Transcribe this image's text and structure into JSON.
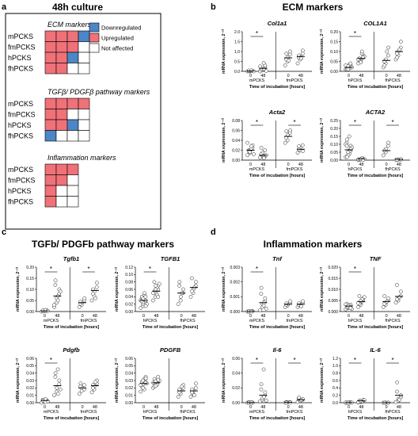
{
  "panel_a": {
    "label": "a",
    "title": "48h culture",
    "rows": [
      "mPCKS",
      "fmPCKS",
      "hPCKS",
      "fhPCKS"
    ],
    "legend": [
      {
        "label": "Downregulated",
        "color": "#4b86c8"
      },
      {
        "label": "Upregulated",
        "color": "#f07178"
      },
      {
        "label": "Not affected",
        "color": "#ffffff"
      }
    ],
    "groups": [
      {
        "title": "ECM markers",
        "cells": [
          [
            "U",
            "U",
            "U",
            "D"
          ],
          [
            "U",
            "U",
            "U",
            "N"
          ],
          [
            "U",
            "U",
            "D",
            "N"
          ],
          [
            "U",
            "U",
            "N",
            "N"
          ]
        ]
      },
      {
        "title": "TGFβ/ PDGFβ pathway markers",
        "cells": [
          [
            "U",
            "U",
            "U",
            "U"
          ],
          [
            "U",
            "U",
            "N",
            "N"
          ],
          [
            "U",
            "U",
            "D",
            "N"
          ],
          [
            "D",
            "N",
            "N",
            "N"
          ]
        ]
      },
      {
        "title": "Inflammation markers",
        "cells": [
          [
            "U",
            "U",
            "U"
          ],
          [
            "U",
            "U",
            "N"
          ],
          [
            "U",
            "N",
            "N"
          ],
          [
            "U",
            "N",
            "N"
          ]
        ]
      }
    ]
  },
  "panels": [
    {
      "label": "b",
      "title": "ECM markers"
    },
    {
      "label": "c",
      "title": "TGFb/ PDGFb pathway markers"
    },
    {
      "label": "d",
      "title": "Inflammation markers"
    }
  ],
  "common": {
    "ylabel": "mRNA expression, 2⁻ᶜᵗ",
    "xtitle": "Time of incubation [hours]",
    "xticks": [
      "0",
      "48",
      "0",
      "48"
    ]
  },
  "chart_data": [
    {
      "type": "scatter",
      "gene": "Col1a1",
      "groups": [
        "mPCKS",
        "fmPCKS"
      ],
      "yticks": [
        "0.0",
        "0.5",
        "1.0",
        "1.5",
        "2.0"
      ],
      "ylim": [
        0,
        2
      ],
      "means": [
        0.02,
        0.15,
        0.68,
        0.75
      ],
      "sig": [
        [
          0,
          1
        ]
      ],
      "points": [
        [
          0,
          0,
          0.01,
          0.02,
          0.03,
          0.01,
          0.04,
          0.02,
          0.05,
          0
        ],
        [
          0,
          0.05,
          0.1,
          0.2,
          0.3,
          0.08,
          0.15,
          0.42,
          0.12,
          0.02,
          0.25
        ],
        [
          0.3,
          0.5,
          0.7,
          0.85,
          1.0,
          0.6,
          0.9,
          0.55
        ],
        [
          0.4,
          0.6,
          0.75,
          0.9,
          1.05,
          0.7,
          0.8,
          0.65
        ]
      ]
    },
    {
      "type": "scatter",
      "gene": "COL1A1",
      "groups": [
        "hPCKS",
        "fhPCKS"
      ],
      "yticks": [
        "0.00",
        "0.05",
        "0.10",
        "0.15",
        "0.20"
      ],
      "ylim": [
        0,
        0.2
      ],
      "means": [
        0.02,
        0.065,
        0.055,
        0.1
      ],
      "sig": [
        [
          0,
          1
        ]
      ],
      "points": [
        [
          0.01,
          0.015,
          0.02,
          0.03,
          0.025,
          0.01,
          0.02,
          0.035,
          0.015,
          0.02,
          0.03,
          0.025,
          0.01,
          0.04
        ],
        [
          0.04,
          0.05,
          0.06,
          0.07,
          0.08,
          0.065,
          0.055,
          0.09,
          0.1,
          0.075,
          0.06,
          0.05,
          0.045,
          0.07
        ],
        [
          0.02,
          0.04,
          0.06,
          0.08,
          0.12,
          0.05,
          0.03,
          0.1
        ],
        [
          0.06,
          0.08,
          0.1,
          0.12,
          0.15,
          0.09,
          0.07,
          0.11
        ]
      ]
    },
    {
      "type": "scatter",
      "gene": "Acta2",
      "groups": [
        "mPCKS",
        "fmPCKS"
      ],
      "yticks": [
        "0.00",
        "0.02",
        "0.04",
        "0.06",
        "0.08"
      ],
      "ylim": [
        0,
        0.08
      ],
      "means": [
        0.02,
        0.01,
        0.048,
        0.022
      ],
      "sig": [
        [
          0,
          1
        ],
        [
          2,
          3
        ]
      ],
      "points": [
        [
          0.01,
          0.015,
          0.02,
          0.025,
          0.03,
          0.02,
          0.018,
          0.022,
          0.028,
          0.012,
          0.035,
          0.016
        ],
        [
          0.005,
          0.01,
          0.015,
          0.02,
          0.008,
          0.012,
          0.025,
          0.006,
          0.004,
          0.01
        ],
        [
          0.035,
          0.04,
          0.05,
          0.055,
          0.06,
          0.045,
          0.058
        ],
        [
          0.015,
          0.02,
          0.025,
          0.03,
          0.018,
          0.022,
          0.028
        ]
      ]
    },
    {
      "type": "scatter",
      "gene": "ACTA2",
      "groups": [
        "hPCKS",
        "fhPCKS"
      ],
      "yticks": [
        "0.00",
        "0.05",
        "0.10",
        "0.15",
        "0.20",
        "0.25"
      ],
      "ylim": [
        0,
        0.25
      ],
      "means": [
        0.065,
        0.008,
        0.06,
        0.005
      ],
      "sig": [
        [
          0,
          1
        ],
        [
          2,
          3
        ]
      ],
      "points": [
        [
          0.02,
          0.03,
          0.05,
          0.07,
          0.09,
          0.11,
          0.13,
          0.06,
          0.04,
          0.08,
          0.1,
          0.05,
          0.03,
          0.06,
          0.07,
          0.09,
          0.02,
          0.15
        ],
        [
          0.002,
          0.005,
          0.008,
          0.01,
          0.006,
          0.004,
          0.003,
          0.009,
          0.012,
          0.007,
          0.005,
          0.004,
          0.006,
          0.002
        ],
        [
          0.03,
          0.05,
          0.07,
          0.09,
          0.11,
          0.06
        ],
        [
          0.002,
          0.003,
          0.005,
          0.004,
          0.006,
          0.003
        ]
      ]
    },
    {
      "type": "scatter",
      "gene": "Tgfb1",
      "groups": [
        "mPCKS",
        "fmPCKS"
      ],
      "yticks": [
        "0.00",
        "0.05",
        "0.10",
        "0.15",
        "0.20"
      ],
      "ylim": [
        0,
        0.2
      ],
      "means": [
        0.003,
        0.07,
        0.04,
        0.095
      ],
      "sig": [
        [
          0,
          1
        ],
        [
          2,
          3
        ]
      ],
      "points": [
        [
          0,
          0.002,
          0.004,
          0.006,
          0.003,
          0.001,
          0.005,
          0.002,
          0.007,
          0.003
        ],
        [
          0.02,
          0.04,
          0.06,
          0.08,
          0.1,
          0.12,
          0.14,
          0.05,
          0.07,
          0.09,
          0.03
        ],
        [
          0.02,
          0.03,
          0.04,
          0.05,
          0.06,
          0.035,
          0.045
        ],
        [
          0.05,
          0.07,
          0.09,
          0.11,
          0.13,
          0.08,
          0.1,
          0.06
        ]
      ]
    },
    {
      "type": "scatter",
      "gene": "TGFB1",
      "groups": [
        "hPCKS",
        "fhPCKS"
      ],
      "yticks": [
        "0.00",
        "0.02",
        "0.04",
        "0.06",
        "0.08",
        "0.10",
        "0.12"
      ],
      "ylim": [
        0,
        0.12
      ],
      "means": [
        0.03,
        0.055,
        0.05,
        0.065
      ],
      "sig": [
        [
          0,
          1
        ]
      ],
      "points": [
        [
          0.01,
          0.015,
          0.02,
          0.025,
          0.03,
          0.035,
          0.04,
          0.045,
          0.05,
          0.02,
          0.03,
          0.025,
          0.035,
          0.04,
          0.015,
          0.028
        ],
        [
          0.03,
          0.04,
          0.05,
          0.06,
          0.07,
          0.08,
          0.055,
          0.065,
          0.045,
          0.075,
          0.05,
          0.06,
          0.07,
          0.04
        ],
        [
          0.02,
          0.03,
          0.04,
          0.05,
          0.06,
          0.07,
          0.08,
          0.05
        ],
        [
          0.04,
          0.05,
          0.06,
          0.07,
          0.08,
          0.09,
          0.055,
          0.065
        ]
      ]
    },
    {
      "type": "scatter",
      "gene": "Pdgfb",
      "groups": [
        "mPCKS",
        "fmPCKS"
      ],
      "yticks": [
        "0.00",
        "0.01",
        "0.02",
        "0.03",
        "0.04",
        "0.05",
        "0.06"
      ],
      "ylim": [
        0,
        0.06
      ],
      "means": [
        0.003,
        0.023,
        0.02,
        0.023
      ],
      "sig": [
        [
          0,
          1
        ]
      ],
      "points": [
        [
          0,
          0.001,
          0.002,
          0.003,
          0.002,
          0.004,
          0.003,
          0.001,
          0.005,
          0.002
        ],
        [
          0.01,
          0.015,
          0.02,
          0.025,
          0.03,
          0.035,
          0.04,
          0.045,
          0.012,
          0.018
        ],
        [
          0.012,
          0.016,
          0.02,
          0.024,
          0.018,
          0.022,
          0.026
        ],
        [
          0.014,
          0.018,
          0.022,
          0.026,
          0.03,
          0.02,
          0.024,
          0.028
        ]
      ]
    },
    {
      "type": "scatter",
      "gene": "PDGFB",
      "groups": [
        "hPCKS",
        "fhPCKS"
      ],
      "yticks": [
        "0.00",
        "0.01",
        "0.02",
        "0.03",
        "0.04",
        "0.05",
        "0.06"
      ],
      "ylim": [
        0,
        0.06
      ],
      "means": [
        0.026,
        0.027,
        0.016,
        0.016
      ],
      "sig": [],
      "points": [
        [
          0.015,
          0.02,
          0.025,
          0.03,
          0.035,
          0.022,
          0.028,
          0.018,
          0.032,
          0.026,
          0.024,
          0.03,
          0.02,
          0.027,
          0.033
        ],
        [
          0.02,
          0.025,
          0.03,
          0.035,
          0.028,
          0.022,
          0.032,
          0.026,
          0.024,
          0.03,
          0.027,
          0.029,
          0.023,
          0.031
        ],
        [
          0.008,
          0.012,
          0.016,
          0.02,
          0.024,
          0.014,
          0.018,
          0.022
        ],
        [
          0.008,
          0.012,
          0.016,
          0.02,
          0.026,
          0.014,
          0.018,
          0.01
        ]
      ]
    },
    {
      "type": "scatter",
      "gene": "Tnf",
      "groups": [
        "mPCKS",
        "fmPCKS"
      ],
      "yticks": [
        "0.000",
        "0.001",
        "0.002",
        "0.003"
      ],
      "ylim": [
        0,
        0.003
      ],
      "means": [
        2e-05,
        0.0006,
        0.0005,
        0.0005
      ],
      "sig": [
        [
          0,
          1
        ]
      ],
      "points": [
        [
          0,
          1e-05,
          2e-05,
          3e-05,
          1e-05,
          0,
          2e-05,
          1e-05
        ],
        [
          0.0001,
          0.0003,
          0.0005,
          0.0007,
          0.0009,
          0.0012,
          0.0016,
          0.0004,
          0.0006,
          0.0002
        ],
        [
          0.0003,
          0.0004,
          0.0005,
          0.0006,
          0.0007,
          0.00045,
          0.00055
        ],
        [
          0.0003,
          0.0004,
          0.0005,
          0.0006,
          0.0007,
          0.00045,
          0.00055,
          0.00035
        ]
      ]
    },
    {
      "type": "scatter",
      "gene": "TNF",
      "groups": [
        "hPCKS",
        "fhPCKS"
      ],
      "yticks": [
        "0.000",
        "0.005",
        "0.010",
        "0.015",
        "0.020"
      ],
      "ylim": [
        0,
        0.02
      ],
      "means": [
        0.0025,
        0.0045,
        0.0045,
        0.0068
      ],
      "sig": [
        [
          0,
          1
        ]
      ],
      "points": [
        [
          0.001,
          0.0015,
          0.002,
          0.0025,
          0.003,
          0.0035,
          0.0018,
          0.0022,
          0.0028,
          0.0012,
          0.0032,
          0.002,
          0.0026,
          0.0016
        ],
        [
          0.002,
          0.003,
          0.004,
          0.005,
          0.006,
          0.007,
          0.0035,
          0.0045,
          0.0055,
          0.0065,
          0.0038,
          0.0048
        ],
        [
          0.002,
          0.003,
          0.004,
          0.005,
          0.006,
          0.007,
          0.0035,
          0.0045
        ],
        [
          0.004,
          0.005,
          0.006,
          0.007,
          0.009,
          0.012,
          0.0055,
          0.0065
        ]
      ]
    },
    {
      "type": "scatter",
      "gene": "Il-6",
      "groups": [
        "mPCKS",
        "fmPCKS"
      ],
      "yticks": [
        "0.00",
        "0.02",
        "0.04",
        "0.06"
      ],
      "ylim": [
        0,
        0.06
      ],
      "means": [
        0.0003,
        0.01,
        0.0005,
        0.004
      ],
      "sig": [
        [
          0,
          1
        ],
        [
          2,
          3
        ]
      ],
      "points": [
        [
          0,
          0.0002,
          0.0004,
          0.0003,
          0.0001,
          0.0005,
          0.0002,
          0.0003,
          0.0004
        ],
        [
          0.002,
          0.004,
          0.006,
          0.01,
          0.014,
          0.018,
          0.025,
          0.045,
          0.008,
          0.003
        ],
        [
          0,
          0.0003,
          0.0006,
          0.0009,
          0.0004,
          0.0007,
          0.0002
        ],
        [
          0.001,
          0.002,
          0.003,
          0.004,
          0.005,
          0.006,
          0.007,
          0.0035
        ]
      ]
    },
    {
      "type": "scatter",
      "gene": "IL-6",
      "groups": [
        "hPCKS",
        "fhPCKS"
      ],
      "yticks": [
        "0.0",
        "0.2",
        "0.4",
        "0.6",
        "0.8",
        "1.0",
        "1.2"
      ],
      "ylim": [
        0,
        1.2
      ],
      "means": [
        0.005,
        0.05,
        0.002,
        0.2
      ],
      "sig": [
        [
          0,
          1
        ],
        [
          2,
          3
        ]
      ],
      "points": [
        [
          0,
          0.002,
          0.004,
          0.006,
          0.008,
          0.003,
          0.005,
          0.007,
          0.001,
          0.004,
          0.006,
          0.002
        ],
        [
          0.01,
          0.02,
          0.03,
          0.05,
          0.08,
          0.04,
          0.06,
          0.025,
          0.035,
          0.07,
          0.015,
          0.045
        ],
        [
          0,
          0.001,
          0.002,
          0.003,
          0.002,
          0.001
        ],
        [
          0.02,
          0.05,
          0.1,
          0.15,
          0.2,
          0.3,
          0.55,
          0.08
        ]
      ]
    }
  ]
}
